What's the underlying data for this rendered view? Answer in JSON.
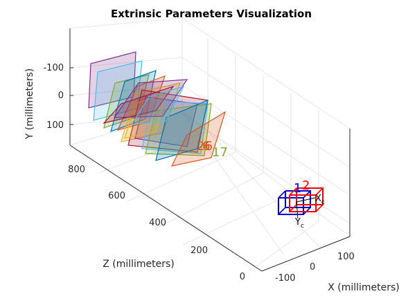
{
  "chart_data": {
    "type": "3d-extrinsics",
    "title": "Extrinsic Parameters Visualization",
    "xlabel": "X (millimeters)",
    "ylabel": "Y (millimeters)",
    "zlabel": "Z (millimeters)",
    "x_ticks": [
      "-100",
      "0",
      "100"
    ],
    "y_ticks": [
      "-100",
      "0",
      "100"
    ],
    "z_ticks": [
      "0",
      "200",
      "400",
      "600",
      "800"
    ],
    "grid": true,
    "board_labels": [
      {
        "text": "6",
        "color": "#d95319"
      },
      {
        "text": "17",
        "color": "#77ac30"
      },
      {
        "text": "26",
        "color": "#d95319"
      }
    ],
    "camera": {
      "x_label": "X",
      "x_sub": "c",
      "y_label": "Y",
      "y_sub": "c",
      "numbers": [
        {
          "text": "1",
          "color": "#0000ff"
        },
        {
          "text": "2",
          "color": "#ff0000"
        }
      ],
      "colors": [
        "#0000cc",
        "#ff0000"
      ]
    },
    "board_colors": [
      "#7e2f8e",
      "#4dbeee",
      "#77ac30",
      "#0072bd",
      "#d95319",
      "#edb120",
      "#a2142f"
    ]
  }
}
